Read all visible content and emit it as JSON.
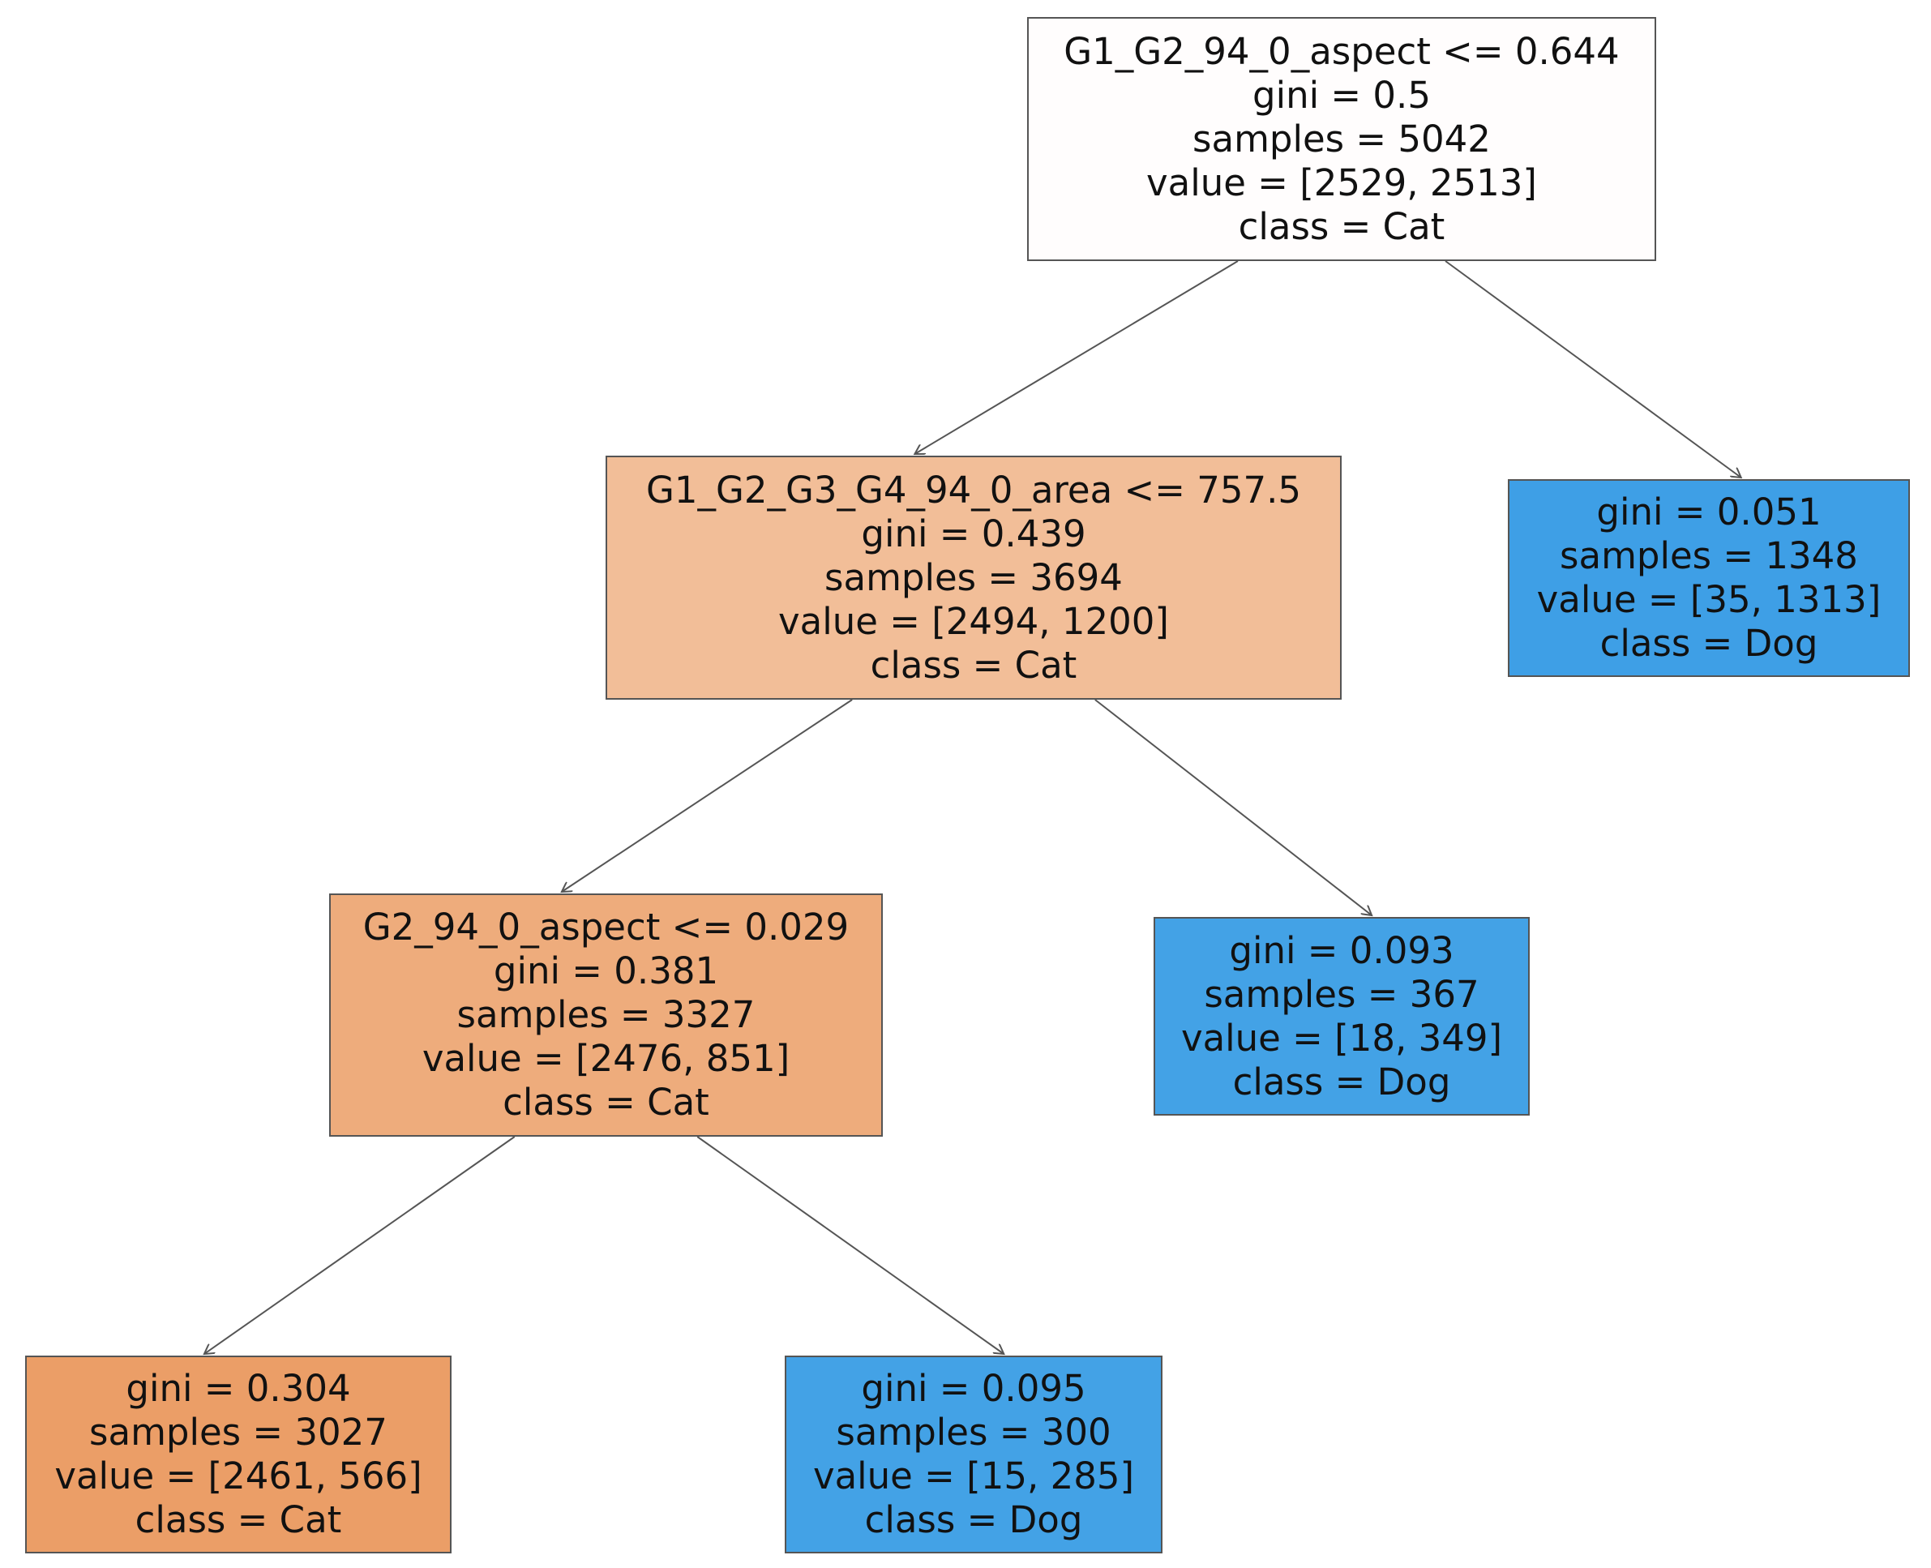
{
  "nodes": [
    {
      "id": "root",
      "split": "G1_G2_94_0_aspect <= 0.644",
      "gini": "gini = 0.5",
      "samples": "samples = 5042",
      "value": "value = [2529, 2513]",
      "class": "class = Cat",
      "color": "#fffdfd"
    },
    {
      "id": "n1",
      "split": "G1_G2_G3_G4_94_0_area <= 757.5",
      "gini": "gini = 0.439",
      "samples": "samples = 3694",
      "value": "value = [2494, 1200]",
      "class": "class = Cat",
      "color": "#f2be98"
    },
    {
      "id": "n2",
      "split": "",
      "gini": "gini = 0.051",
      "samples": "samples = 1348",
      "value": "value = [35, 1313]",
      "class": "class = Dog",
      "color": "#3e9fe6"
    },
    {
      "id": "n3",
      "split": "G2_94_0_aspect <= 0.029",
      "gini": "gini = 0.381",
      "samples": "samples = 3327",
      "value": "value = [2476, 851]",
      "class": "class = Cat",
      "color": "#eeac7c"
    },
    {
      "id": "n4",
      "split": "",
      "gini": "gini = 0.093",
      "samples": "samples = 367",
      "value": "value = [18, 349]",
      "class": "class = Dog",
      "color": "#43a2e6"
    },
    {
      "id": "n5",
      "split": "",
      "gini": "gini = 0.304",
      "samples": "samples = 3027",
      "value": "value = [2461, 566]",
      "class": "class = Cat",
      "color": "#eb9e67"
    },
    {
      "id": "n6",
      "split": "",
      "gini": "gini = 0.095",
      "samples": "samples = 300",
      "value": "value = [15, 285]",
      "class": "class = Dog",
      "color": "#43a2e6"
    }
  ],
  "edges": [
    [
      "root",
      "n1"
    ],
    [
      "root",
      "n2"
    ],
    [
      "n1",
      "n3"
    ],
    [
      "n1",
      "n4"
    ],
    [
      "n3",
      "n5"
    ],
    [
      "n3",
      "n6"
    ]
  ]
}
